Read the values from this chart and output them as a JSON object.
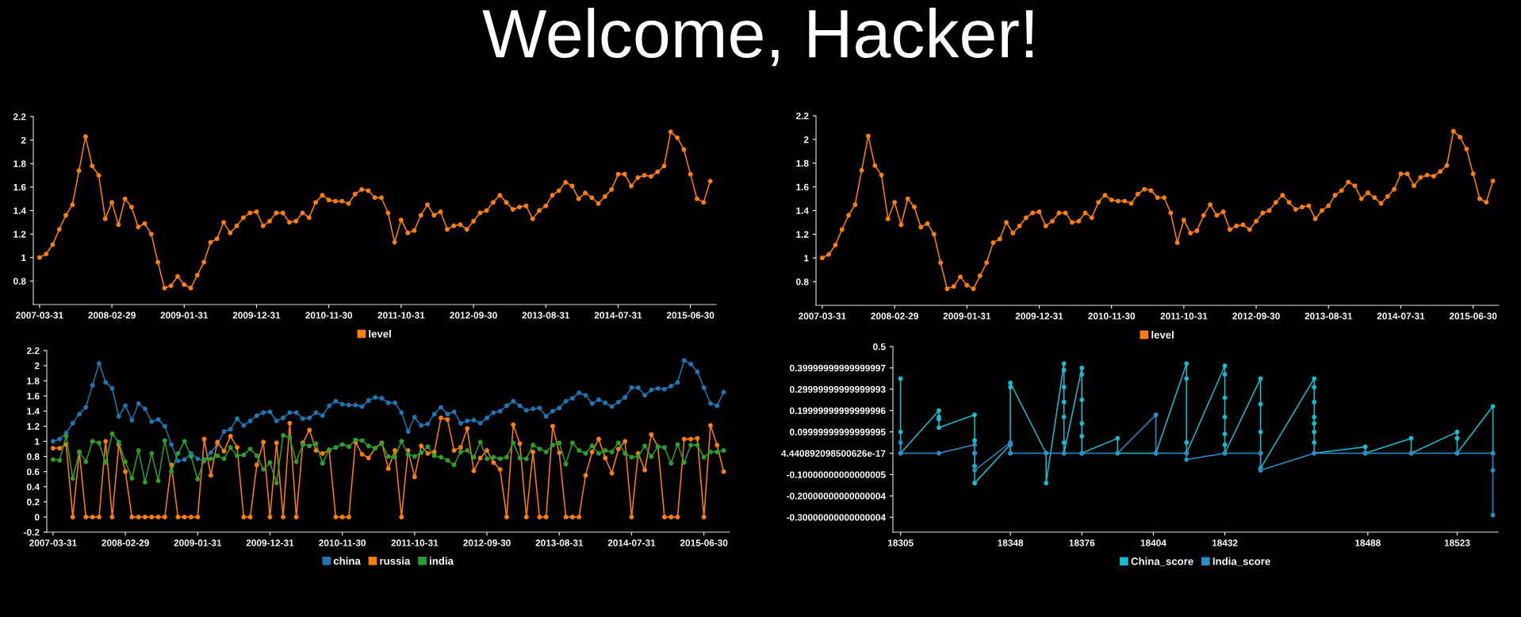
{
  "chart_data": [
    {
      "type": "line",
      "title": "Welcome, Hacker!",
      "categories": [
        "2007-03-31",
        null,
        null,
        null,
        null,
        null,
        null,
        null,
        null,
        null,
        null,
        "2008-02-29",
        null,
        null,
        null,
        null,
        null,
        null,
        null,
        null,
        null,
        null,
        "2009-01-31",
        null,
        null,
        null,
        null,
        null,
        null,
        null,
        null,
        null,
        null,
        "2009-12-31",
        null,
        null,
        null,
        null,
        null,
        null,
        null,
        null,
        null,
        null,
        "2010-11-30",
        null,
        null,
        null,
        null,
        null,
        null,
        null,
        null,
        null,
        null,
        "2011-10-31",
        null,
        null,
        null,
        null,
        null,
        null,
        null,
        null,
        null,
        null,
        "2012-09-30",
        null,
        null,
        null,
        null,
        null,
        null,
        null,
        null,
        null,
        null,
        "2013-08-31",
        null,
        null,
        null,
        null,
        null,
        null,
        null,
        null,
        null,
        null,
        "2014-07-31",
        null,
        null,
        null,
        null,
        null,
        null,
        null,
        null,
        null,
        null,
        "2015-06-30",
        null,
        null,
        null
      ],
      "series": [
        {
          "name": "level",
          "color": "#ff7f0e",
          "values": [
            1.0,
            1.03,
            1.11,
            1.24,
            1.36,
            1.45,
            1.74,
            2.03,
            1.78,
            1.7,
            1.33,
            1.47,
            1.28,
            1.5,
            1.43,
            1.26,
            1.29,
            1.2,
            0.96,
            0.74,
            0.76,
            0.84,
            0.77,
            0.74,
            0.85,
            0.96,
            1.13,
            1.16,
            1.3,
            1.21,
            1.27,
            1.34,
            1.38,
            1.39,
            1.27,
            1.31,
            1.38,
            1.38,
            1.3,
            1.31,
            1.38,
            1.34,
            1.47,
            1.53,
            1.49,
            1.48,
            1.48,
            1.46,
            1.54,
            1.58,
            1.57,
            1.51,
            1.51,
            1.38,
            1.13,
            1.32,
            1.21,
            1.23,
            1.36,
            1.45,
            1.36,
            1.39,
            1.24,
            1.27,
            1.28,
            1.24,
            1.31,
            1.38,
            1.4,
            1.47,
            1.53,
            1.47,
            1.41,
            1.43,
            1.44,
            1.33,
            1.4,
            1.44,
            1.53,
            1.57,
            1.64,
            1.61,
            1.5,
            1.55,
            1.51,
            1.46,
            1.52,
            1.58,
            1.71,
            1.71,
            1.61,
            1.68,
            1.7,
            1.69,
            1.73,
            1.78,
            2.07,
            2.02,
            1.92,
            1.71,
            1.5,
            1.47,
            1.65
          ]
        }
      ],
      "ylim": [
        0.6,
        2.2
      ],
      "yticks": [
        0.8,
        1,
        1.2,
        1.4,
        1.6,
        1.8,
        2,
        2.2
      ],
      "legend": "bottom",
      "marker": "circle",
      "grid": false
    },
    {
      "type": "line",
      "categories": [
        "2007-03-31",
        null,
        null,
        null,
        null,
        null,
        null,
        null,
        null,
        null,
        null,
        "2008-02-29",
        null,
        null,
        null,
        null,
        null,
        null,
        null,
        null,
        null,
        null,
        "2009-01-31",
        null,
        null,
        null,
        null,
        null,
        null,
        null,
        null,
        null,
        null,
        "2009-12-31",
        null,
        null,
        null,
        null,
        null,
        null,
        null,
        null,
        null,
        null,
        "2010-11-30",
        null,
        null,
        null,
        null,
        null,
        null,
        null,
        null,
        null,
        null,
        "2011-10-31",
        null,
        null,
        null,
        null,
        null,
        null,
        null,
        null,
        null,
        null,
        "2012-09-30",
        null,
        null,
        null,
        null,
        null,
        null,
        null,
        null,
        null,
        null,
        "2013-08-31",
        null,
        null,
        null,
        null,
        null,
        null,
        null,
        null,
        null,
        null,
        "2014-07-31",
        null,
        null,
        null,
        null,
        null,
        null,
        null,
        null,
        null,
        null,
        "2015-06-30",
        null,
        null,
        null
      ],
      "series": [
        {
          "name": "level",
          "color": "#ff7f0e",
          "values": [
            1.0,
            1.03,
            1.11,
            1.24,
            1.36,
            1.45,
            1.74,
            2.03,
            1.78,
            1.7,
            1.33,
            1.47,
            1.28,
            1.5,
            1.43,
            1.26,
            1.29,
            1.2,
            0.96,
            0.74,
            0.76,
            0.84,
            0.77,
            0.74,
            0.85,
            0.96,
            1.13,
            1.16,
            1.3,
            1.21,
            1.27,
            1.34,
            1.38,
            1.39,
            1.27,
            1.31,
            1.38,
            1.38,
            1.3,
            1.31,
            1.38,
            1.34,
            1.47,
            1.53,
            1.49,
            1.48,
            1.48,
            1.46,
            1.54,
            1.58,
            1.57,
            1.51,
            1.51,
            1.38,
            1.13,
            1.32,
            1.21,
            1.23,
            1.36,
            1.45,
            1.36,
            1.39,
            1.24,
            1.27,
            1.28,
            1.24,
            1.31,
            1.38,
            1.4,
            1.47,
            1.53,
            1.47,
            1.41,
            1.43,
            1.44,
            1.33,
            1.4,
            1.44,
            1.53,
            1.57,
            1.64,
            1.61,
            1.5,
            1.55,
            1.51,
            1.46,
            1.52,
            1.58,
            1.71,
            1.71,
            1.61,
            1.68,
            1.7,
            1.69,
            1.73,
            1.78,
            2.07,
            2.02,
            1.92,
            1.71,
            1.5,
            1.47,
            1.65
          ]
        }
      ],
      "ylim": [
        0.6,
        2.2
      ],
      "yticks": [
        0.8,
        1,
        1.2,
        1.4,
        1.6,
        1.8,
        2,
        2.2
      ],
      "legend": "bottom",
      "marker": "circle",
      "grid": false
    },
    {
      "type": "line",
      "categories": [
        "2007-03-31",
        null,
        null,
        null,
        null,
        null,
        null,
        null,
        null,
        null,
        null,
        "2008-02-29",
        null,
        null,
        null,
        null,
        null,
        null,
        null,
        null,
        null,
        null,
        "2009-01-31",
        null,
        null,
        null,
        null,
        null,
        null,
        null,
        null,
        null,
        null,
        "2009-12-31",
        null,
        null,
        null,
        null,
        null,
        null,
        null,
        null,
        null,
        null,
        "2010-11-30",
        null,
        null,
        null,
        null,
        null,
        null,
        null,
        null,
        null,
        null,
        "2011-10-31",
        null,
        null,
        null,
        null,
        null,
        null,
        null,
        null,
        null,
        null,
        "2012-09-30",
        null,
        null,
        null,
        null,
        null,
        null,
        null,
        null,
        null,
        null,
        "2013-08-31",
        null,
        null,
        null,
        null,
        null,
        null,
        null,
        null,
        null,
        null,
        "2014-07-31",
        null,
        null,
        null,
        null,
        null,
        null,
        null,
        null,
        null,
        null,
        "2015-06-30",
        null,
        null,
        null
      ],
      "series": [
        {
          "name": "china",
          "color": "#1f77b4",
          "values": [
            1.0,
            1.03,
            1.11,
            1.24,
            1.36,
            1.45,
            1.74,
            2.03,
            1.78,
            1.7,
            1.33,
            1.47,
            1.28,
            1.5,
            1.43,
            1.26,
            1.29,
            1.2,
            0.96,
            0.74,
            0.76,
            0.84,
            0.77,
            0.74,
            0.85,
            0.96,
            1.13,
            1.16,
            1.3,
            1.21,
            1.27,
            1.34,
            1.38,
            1.39,
            1.27,
            1.31,
            1.38,
            1.38,
            1.3,
            1.31,
            1.38,
            1.34,
            1.47,
            1.53,
            1.49,
            1.48,
            1.48,
            1.46,
            1.54,
            1.58,
            1.57,
            1.51,
            1.51,
            1.38,
            1.13,
            1.32,
            1.21,
            1.23,
            1.36,
            1.45,
            1.36,
            1.39,
            1.24,
            1.27,
            1.28,
            1.24,
            1.31,
            1.38,
            1.4,
            1.47,
            1.53,
            1.47,
            1.41,
            1.43,
            1.44,
            1.33,
            1.4,
            1.44,
            1.53,
            1.57,
            1.64,
            1.61,
            1.5,
            1.55,
            1.51,
            1.46,
            1.52,
            1.58,
            1.71,
            1.71,
            1.61,
            1.68,
            1.7,
            1.69,
            1.73,
            1.78,
            2.07,
            2.02,
            1.92,
            1.71,
            1.5,
            1.47,
            1.65
          ]
        },
        {
          "name": "russia",
          "color": "#ff7f0e",
          "values": [
            0.91,
            0.91,
            0.96,
            0,
            0.86,
            0,
            0,
            0,
            1.0,
            0,
            0.96,
            0.6,
            0,
            0,
            0,
            0,
            0,
            0,
            0.69,
            0,
            0,
            0,
            0,
            1.03,
            0.55,
            0.99,
            0.87,
            1.07,
            0.92,
            0,
            0,
            0.69,
            0.99,
            0,
            0.98,
            0,
            1.24,
            0,
            0.98,
            1.15,
            0.88,
            0.84,
            0.88,
            0,
            0,
            0,
            0.99,
            0.83,
            0.78,
            0.91,
            0.98,
            0.64,
            0.88,
            0,
            0.88,
            0.53,
            0.94,
            0.84,
            0.86,
            1.31,
            1.29,
            0.88,
            0.92,
            1.17,
            0.61,
            0.78,
            0.88,
            0.72,
            0.63,
            0,
            1.22,
            0.97,
            0,
            0.86,
            0,
            0,
            1.2,
            0.85,
            0,
            0,
            0,
            0.55,
            0.86,
            1.03,
            0.78,
            0.58,
            0.9,
            1.0,
            0,
            0.84,
            0.62,
            1.09,
            0.93,
            0,
            0,
            0,
            1.03,
            1.03,
            1.04,
            0,
            1.21,
            0.95,
            0.6
          ]
        },
        {
          "name": "india",
          "color": "#2ca02c",
          "values": [
            0.76,
            0.75,
            1.07,
            0.51,
            0.86,
            0.73,
            1.0,
            0.98,
            0.72,
            1.1,
            0.99,
            0.73,
            0.51,
            0.88,
            0.46,
            0.84,
            0.48,
            1.01,
            0.6,
            0.84,
            1.0,
            0.8,
            0.5,
            0.76,
            0.77,
            0.81,
            0.77,
            0.92,
            0.81,
            0.82,
            0.9,
            0.81,
            0.63,
            0.72,
            0.45,
            1.08,
            1.05,
            0.73,
            0.96,
            0.94,
            0.97,
            0.71,
            0.89,
            0.92,
            0.96,
            0.93,
            1.02,
            1.01,
            0.94,
            0.91,
            0.97,
            0.8,
            0.79,
            1.0,
            0.83,
            0.8,
            0.85,
            0.93,
            0.81,
            0.79,
            0.75,
            0.69,
            0.86,
            0.88,
            0.79,
            0.99,
            0.77,
            0.79,
            0.77,
            0.79,
            0.98,
            0.78,
            0.77,
            0.95,
            0.9,
            0.86,
            0.95,
            0.98,
            0.7,
            0.98,
            0.88,
            0.84,
            0.94,
            0.84,
            0.88,
            0.86,
            0.98,
            0.84,
            0.79,
            0.8,
            0.94,
            0.8,
            0.93,
            0.92,
            0.71,
            0.96,
            0.72,
            0.95,
            0.95,
            0.79,
            0.86,
            0.86,
            0.88
          ]
        }
      ],
      "ylim": [
        -0.2,
        2.2
      ],
      "yticks": [
        -0.2,
        0,
        0.2,
        0.4,
        0.6,
        0.8,
        1,
        1.2,
        1.4,
        1.6,
        1.8,
        2,
        2.2
      ],
      "legend": "bottom",
      "marker": "circle",
      "grid": false
    },
    {
      "type": "line",
      "series": [
        {
          "name": "China_score",
          "color": "#17becf",
          "x": [
            18305,
            18305,
            18305,
            18320,
            18320,
            18320,
            18320,
            18334,
            18334,
            18334,
            18334,
            18334,
            18348,
            18348,
            18348,
            18348,
            18362,
            18362,
            18369,
            18369,
            18369,
            18369,
            18369,
            18369,
            18369,
            18376,
            18376,
            18376,
            18376,
            18376,
            18376,
            18390,
            18390,
            18405,
            18417,
            18417,
            18417,
            18417,
            18432,
            18432,
            18432,
            18432,
            18432,
            18432,
            18432,
            18446,
            18446,
            18446,
            18446,
            18446,
            18467,
            18467,
            18467,
            18467,
            18467,
            18467,
            18467,
            18467,
            18487,
            18487,
            18505,
            18505,
            18523,
            18523,
            18523,
            18537,
            18537
          ],
          "values": [
            0.35,
            0.1,
            0.0,
            0.2,
            0.17,
            0.16,
            0.12,
            0.18,
            0.06,
            0.0,
            -0.06,
            -0.14,
            0.04,
            0.0,
            0.31,
            0.33,
            0.0,
            -0.14,
            0.42,
            0.39,
            0.31,
            0.24,
            0.17,
            0.05,
            0.0,
            0.4,
            0.37,
            0.25,
            0.14,
            0.08,
            0.0,
            0.07,
            0.0,
            0.0,
            0.42,
            0.35,
            0.05,
            0.0,
            0.41,
            0.37,
            0.26,
            0.17,
            0.09,
            0.04,
            0.0,
            0.35,
            0.23,
            0.1,
            0.0,
            -0.07,
            0.35,
            0.31,
            0.24,
            0.17,
            0.14,
            0.1,
            0.05,
            0.0,
            0.03,
            0.0,
            0.07,
            0.0,
            0.1,
            0.07,
            0.0,
            0.22,
            0.0
          ]
        },
        {
          "name": "India_score",
          "color": "#2a8fc8",
          "x": [
            18305,
            18305,
            18320,
            18334,
            18334,
            18334,
            18348,
            18348,
            18362,
            18369,
            18376,
            18390,
            18405,
            18405,
            18417,
            18417,
            18432,
            18446,
            18446,
            18467,
            18487,
            18505,
            18523,
            18537,
            18537,
            18537
          ],
          "values": [
            0.05,
            0.0,
            0.0,
            0.04,
            0.0,
            -0.08,
            0.05,
            0.0,
            0.0,
            0.0,
            0.0,
            0.0,
            0.18,
            0.0,
            0.0,
            -0.03,
            0.0,
            0.0,
            -0.08,
            0.0,
            0.0,
            0.0,
            0.0,
            0.0,
            -0.08,
            -0.29
          ]
        }
      ],
      "xlim": [
        18302,
        18539
      ],
      "xticks": [
        18305,
        18348,
        18376,
        18404,
        18432,
        18488,
        18523
      ],
      "ylim": [
        -0.37,
        0.5
      ],
      "yticks": [
        {
          "value": -0.3,
          "label": "-0.30000000000000004"
        },
        {
          "value": -0.2,
          "label": "-0.20000000000000004"
        },
        {
          "value": -0.1,
          "label": "-0.10000000000000005"
        },
        {
          "value": 0.0,
          "label": "4.440892098500626e-17"
        },
        {
          "value": 0.1,
          "label": "0.09999999999999995"
        },
        {
          "value": 0.2,
          "label": "0.19999999999999996"
        },
        {
          "value": 0.3,
          "label": "0.29999999999999993"
        },
        {
          "value": 0.4,
          "label": "0.39999999999999997"
        },
        0.5
      ],
      "legend": "bottom",
      "marker": "circle",
      "grid": false
    }
  ]
}
